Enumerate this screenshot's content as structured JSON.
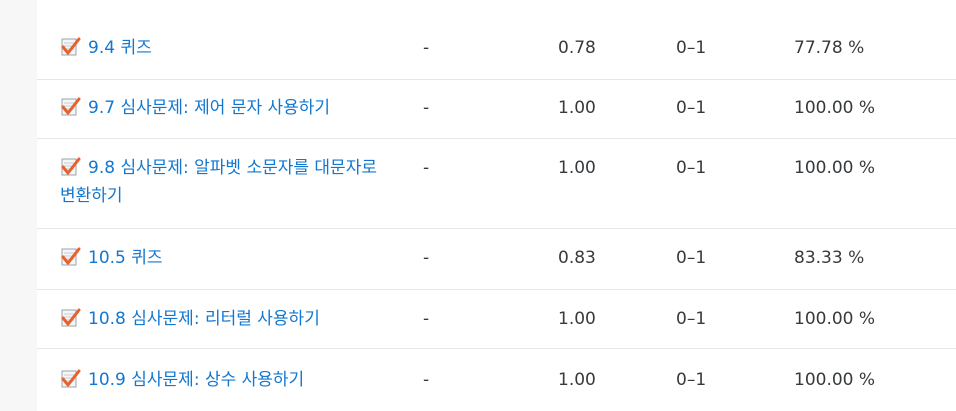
{
  "rows": [
    {
      "item": "9.4 퀴즈",
      "range": "-",
      "grade": "0.78",
      "minmax": "0–1",
      "percent": "77.78 %"
    },
    {
      "item": "9.7 심사문제: 제어 문자 사용하기",
      "range": "-",
      "grade": "1.00",
      "minmax": "0–1",
      "percent": "100.00 %"
    },
    {
      "item": "9.8 심사문제: 알파벳 소문자를 대문자로 변환하기",
      "range": "-",
      "grade": "1.00",
      "minmax": "0–1",
      "percent": "100.00 %"
    },
    {
      "item": "10.5 퀴즈",
      "range": "-",
      "grade": "0.83",
      "minmax": "0–1",
      "percent": "83.33 %"
    },
    {
      "item": "10.8 심사문제: 리터럴 사용하기",
      "range": "-",
      "grade": "1.00",
      "minmax": "0–1",
      "percent": "100.00 %"
    },
    {
      "item": "10.9 심사문제: 상수 사용하기",
      "range": "-",
      "grade": "1.00",
      "minmax": "0–1",
      "percent": "100.00 %"
    }
  ],
  "icon": "assignment-checkmark-icon",
  "colors": {
    "link": "#1177d1",
    "text": "#373a3c",
    "check": "#e8612c"
  }
}
